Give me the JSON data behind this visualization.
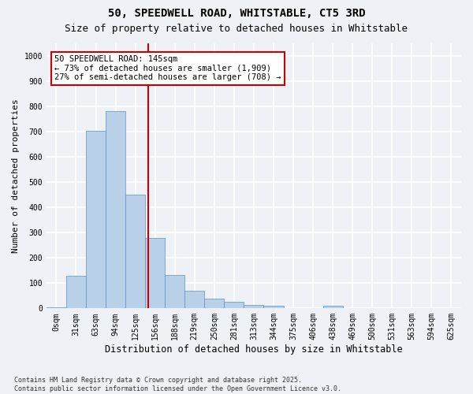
{
  "title_line1": "50, SPEEDWELL ROAD, WHITSTABLE, CT5 3RD",
  "title_line2": "Size of property relative to detached houses in Whitstable",
  "xlabel": "Distribution of detached houses by size in Whitstable",
  "ylabel": "Number of detached properties",
  "bar_labels": [
    "0sqm",
    "31sqm",
    "63sqm",
    "94sqm",
    "125sqm",
    "156sqm",
    "188sqm",
    "219sqm",
    "250sqm",
    "281sqm",
    "313sqm",
    "344sqm",
    "375sqm",
    "406sqm",
    "438sqm",
    "469sqm",
    "500sqm",
    "531sqm",
    "563sqm",
    "594sqm",
    "625sqm"
  ],
  "bar_values": [
    5,
    130,
    705,
    780,
    450,
    278,
    133,
    70,
    40,
    25,
    15,
    10,
    0,
    0,
    10,
    0,
    0,
    0,
    0,
    0,
    0
  ],
  "bar_color": "#b8d0e8",
  "bar_edgecolor": "#6090c0",
  "vline_x_index": 4.65,
  "vline_color": "#cc0000",
  "annotation_text": "50 SPEEDWELL ROAD: 145sqm\n← 73% of detached houses are smaller (1,909)\n27% of semi-detached houses are larger (708) →",
  "annotation_box_color": "#ffffff",
  "annotation_box_edgecolor": "#cc0000",
  "ylim": [
    0,
    1050
  ],
  "yticks": [
    0,
    100,
    200,
    300,
    400,
    500,
    600,
    700,
    800,
    900,
    1000
  ],
  "background_color": "#eef2f7",
  "grid_color": "#ffffff",
  "footer_text": "Contains HM Land Registry data © Crown copyright and database right 2025.\nContains public sector information licensed under the Open Government Licence v3.0.",
  "title_fontsize": 10,
  "subtitle_fontsize": 9,
  "axis_label_fontsize": 8.5,
  "tick_fontsize": 7,
  "annotation_fontsize": 7.5,
  "ylabel_fontsize": 8
}
